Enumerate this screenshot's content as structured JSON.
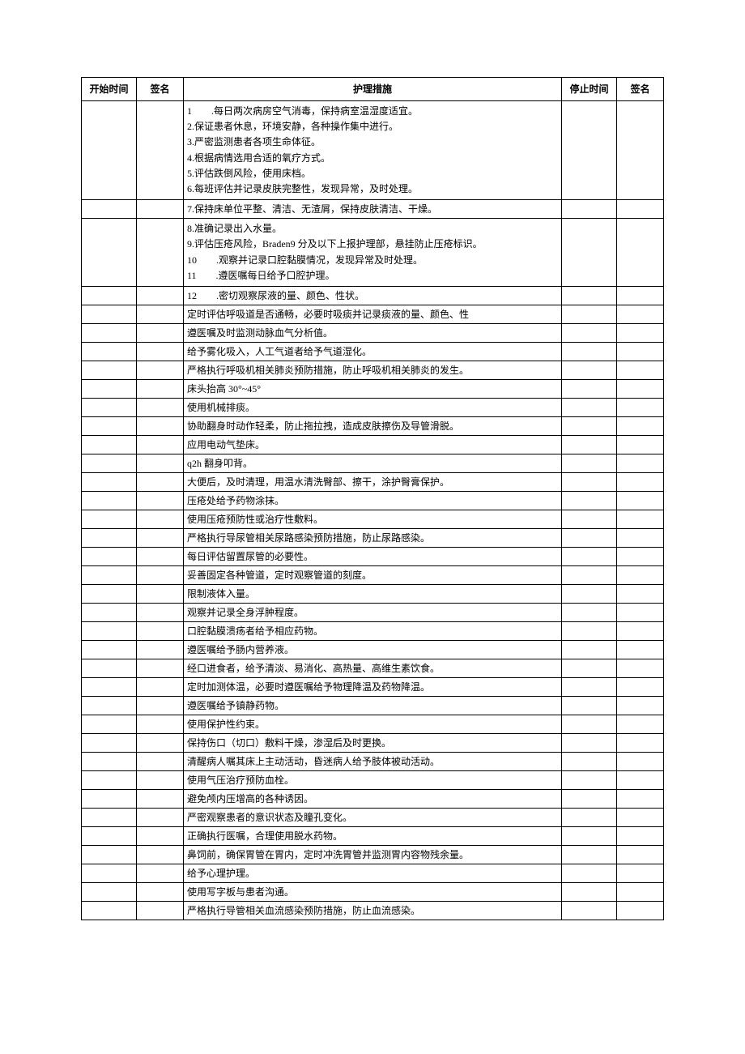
{
  "table": {
    "headers": {
      "start_time": "开始时间",
      "sign1": "签名",
      "measure": "护理措施",
      "stop_time": "停止时间",
      "sign2": "签名"
    },
    "rows": [
      {
        "measure": "1　　.每日两次病房空气消毒，保持病室温湿度适宜。\n2.保证患者休息，环境安静，各种操作集中进行。\n3.严密监测患者各项生命体征。\n4.根据病情选用合适的氧疗方式。\n5.评估跌倒风险，使用床档。\n6.每班评估并记录皮肤完整性，发现异常，及时处理。",
        "multi": true
      },
      {
        "measure": "7.保持床单位平整、清洁、无渣屑，保持皮肤清洁、干燥。"
      },
      {
        "measure": "8.准确记录出入水量。\n9.评估压疮风险，Braden9 分及以下上报护理部，悬挂防止压疮标识。\n10　　.观察并记录口腔黏膜情况，发现异常及时处理。\n11　　.遵医嘱每日给予口腔护理。",
        "multi": true
      },
      {
        "measure": "12　　.密切观察尿液的量、颜色、性状。"
      },
      {
        "measure": "定时评估呼吸道是否通畅，必要时吸痰并记录痰液的量、颜色、性"
      },
      {
        "measure": "遵医嘱及时监测动脉血气分析值。"
      },
      {
        "measure": "给予雾化吸入，人工气道者给予气道湿化。"
      },
      {
        "measure": "严格执行呼吸机相关肺炎预防措施，防止呼吸机相关肺炎的发生。"
      },
      {
        "measure": "床头抬高 30°~45°"
      },
      {
        "measure": "使用机械排痰。"
      },
      {
        "measure": "协助翻身时动作轻柔，防止拖拉拽，造成皮肤擦伤及导管滑脱。"
      },
      {
        "measure": "应用电动气垫床。"
      },
      {
        "measure": "q2h 翻身叩背。"
      },
      {
        "measure": "大便后，及时清理，用温水清洗臀部、擦干，涂护臀膏保护。"
      },
      {
        "measure": "压疮处给予药物涂抹。"
      },
      {
        "measure": "使用压疮预防性或治疗性敷料。"
      },
      {
        "measure": "严格执行导尿管相关尿路感染预防措施，防止尿路感染。"
      },
      {
        "measure": "每日评估留置尿管的必要性。"
      },
      {
        "measure": "妥善固定各种管道，定时观察管道的刻度。"
      },
      {
        "measure": "限制液体入量。"
      },
      {
        "measure": "观察并记录全身浮肿程度。"
      },
      {
        "measure": "口腔黏膜溃疡者给予相应药物。"
      },
      {
        "measure": "遵医嘱给予肠内营养液。"
      },
      {
        "measure": "经口进食者，给予清淡、易消化、高热量、高维生素饮食。"
      },
      {
        "measure": "定时加测体温，必要时遵医嘱给予物理降温及药物降温。"
      },
      {
        "measure": "遵医嘱给予镇静药物。"
      },
      {
        "measure": "使用保护性约束。"
      },
      {
        "measure": "保持伤口（切口）敷料干燥，渗湿后及时更换。"
      },
      {
        "measure": "清醒病人嘱其床上主动活动，昏迷病人给予肢体被动活动。"
      },
      {
        "measure": "使用气压治疗预防血栓。"
      },
      {
        "measure": "避免颅内压增高的各种诱因。"
      },
      {
        "measure": "严密观察患者的意识状态及瞳孔变化。"
      },
      {
        "measure": "正确执行医嘱，合理使用脱水药物。"
      },
      {
        "measure": "鼻饲前，确保胃管在胃内，定时冲洗胃管并监测胃内容物残余量。"
      },
      {
        "measure": "给予心理护理。"
      },
      {
        "measure": "使用写字板与患者沟通。"
      },
      {
        "measure": "严格执行导管相关血流感染预防措施，防止血流感染。"
      }
    ],
    "columns_width": {
      "start": 68,
      "sign1": 58,
      "stop": 68,
      "sign2": 58
    },
    "font_size": 12,
    "border_color": "#000000",
    "background_color": "#ffffff"
  }
}
